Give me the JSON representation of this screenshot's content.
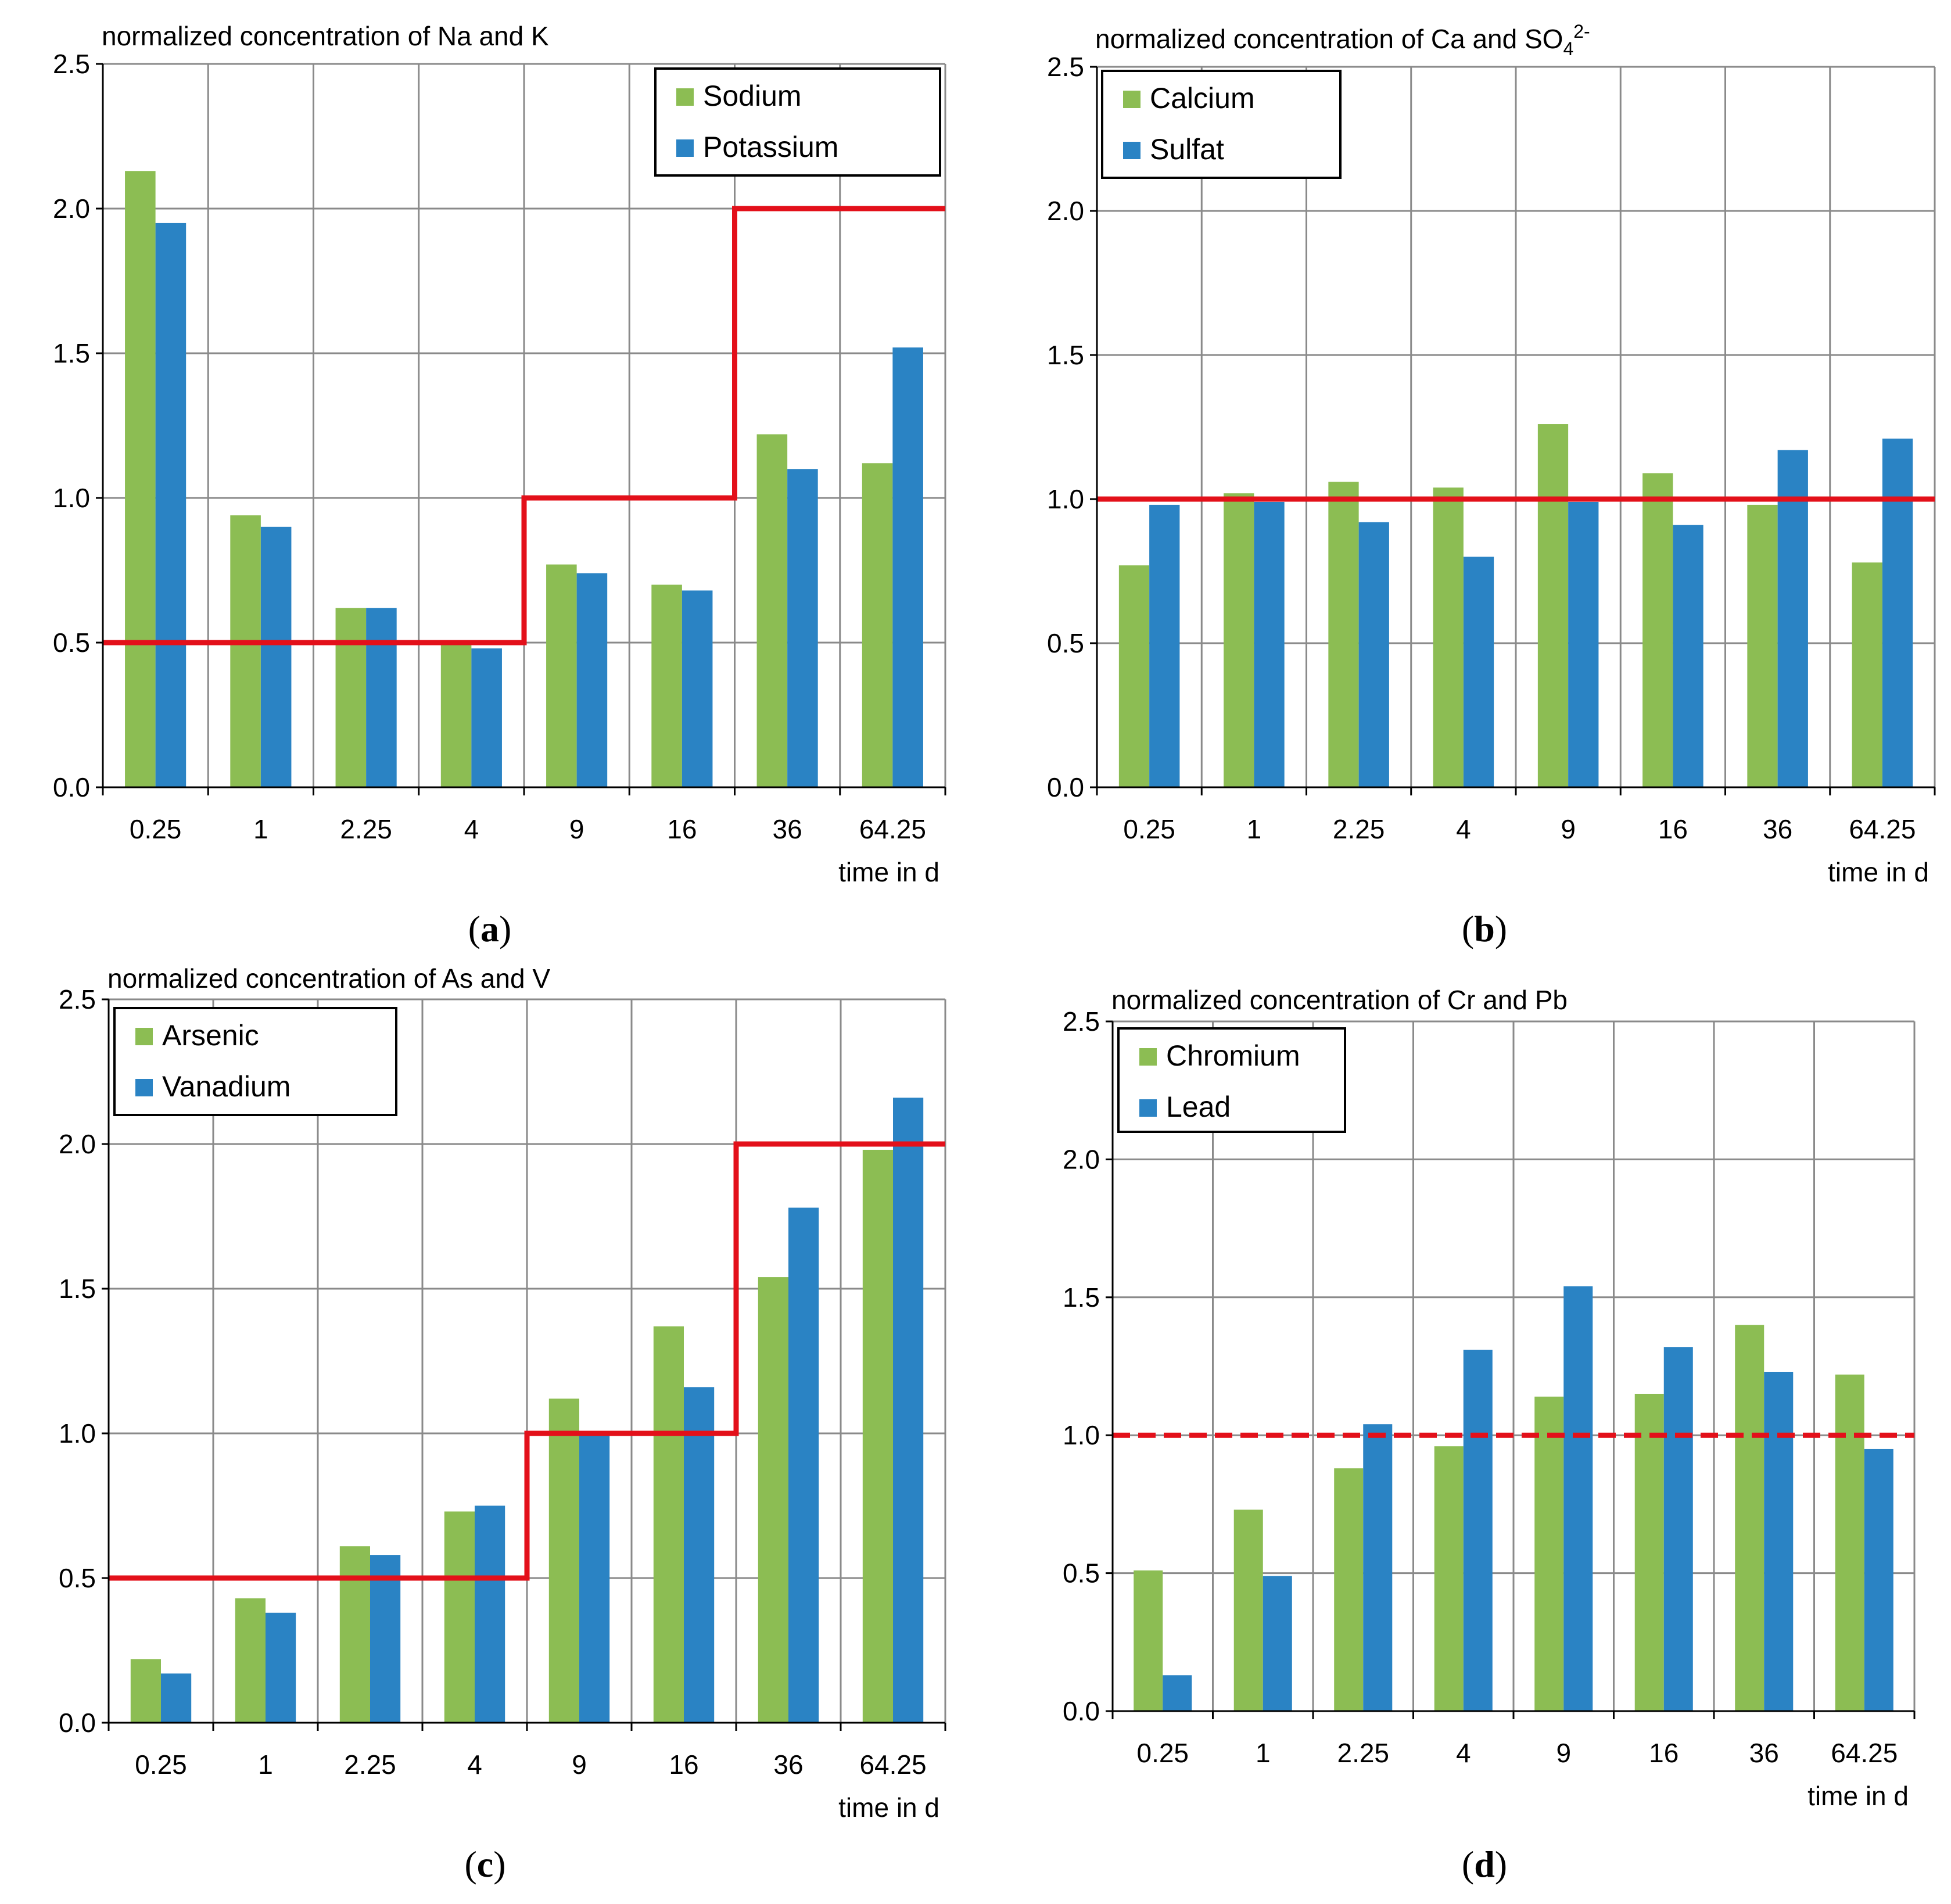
{
  "colors": {
    "series1": "#8cbd53",
    "series2": "#2a83c4",
    "threshold": "#e3101a",
    "grid": "#8a8a8a",
    "axis": "#000000"
  },
  "chart_data": [
    {
      "id": "a",
      "type": "bar",
      "title": "normalized concentration of Na and K",
      "caption_letter": "a",
      "xlabel": "time in d",
      "ylabel": "",
      "ylim": [
        0,
        2.5
      ],
      "yticks": [
        "0.0",
        "0.5",
        "1.0",
        "1.5",
        "2.0",
        "2.5"
      ],
      "categories": [
        "0.25",
        "1",
        "2.25",
        "4",
        "9",
        "16",
        "36",
        "64.25"
      ],
      "series": [
        {
          "name": "Sodium",
          "values": [
            2.13,
            0.94,
            0.62,
            0.5,
            0.77,
            0.7,
            1.22,
            1.12
          ]
        },
        {
          "name": "Potassium",
          "values": [
            1.95,
            0.9,
            0.62,
            0.48,
            0.74,
            0.68,
            1.1,
            1.52
          ]
        }
      ],
      "threshold": {
        "style": "solid",
        "levels": [
          0.5,
          0.5,
          0.5,
          0.5,
          1.0,
          1.0,
          2.0,
          2.0
        ]
      },
      "legend": "top-right",
      "grid": true
    },
    {
      "id": "b",
      "type": "bar",
      "title": "normalized concentration of Ca and SO",
      "title_sub": "4",
      "title_sup": "2-",
      "caption_letter": "b",
      "xlabel": "time in d",
      "ylabel": "",
      "ylim": [
        0,
        2.5
      ],
      "yticks": [
        "0.0",
        "0.5",
        "1.0",
        "1.5",
        "2.0",
        "2.5"
      ],
      "categories": [
        "0.25",
        "1",
        "2.25",
        "4",
        "9",
        "16",
        "36",
        "64.25"
      ],
      "series": [
        {
          "name": "Calcium",
          "values": [
            0.77,
            1.02,
            1.06,
            1.04,
            1.26,
            1.09,
            0.98,
            0.78
          ]
        },
        {
          "name": "Sulfat",
          "values": [
            0.98,
            0.99,
            0.92,
            0.8,
            0.99,
            0.91,
            1.17,
            1.21
          ]
        }
      ],
      "threshold": {
        "style": "solid",
        "levels": [
          1.0,
          1.0,
          1.0,
          1.0,
          1.0,
          1.0,
          1.0,
          1.0
        ]
      },
      "legend": "top-left",
      "grid": true
    },
    {
      "id": "c",
      "type": "bar",
      "title": "normalized concentration of As and V",
      "caption_letter": "c",
      "xlabel": "time in d",
      "ylabel": "",
      "ylim": [
        0,
        2.5
      ],
      "yticks": [
        "0.0",
        "0.5",
        "1.0",
        "1.5",
        "2.0",
        "2.5"
      ],
      "categories": [
        "0.25",
        "1",
        "2.25",
        "4",
        "9",
        "16",
        "36",
        "64.25"
      ],
      "series": [
        {
          "name": "Arsenic",
          "values": [
            0.22,
            0.43,
            0.61,
            0.73,
            1.12,
            1.37,
            1.54,
            1.98
          ]
        },
        {
          "name": "Vanadium",
          "values": [
            0.17,
            0.38,
            0.58,
            0.75,
            1.0,
            1.16,
            1.78,
            2.16
          ]
        }
      ],
      "threshold": {
        "style": "solid",
        "levels": [
          0.5,
          0.5,
          0.5,
          0.5,
          1.0,
          1.0,
          2.0,
          2.0
        ]
      },
      "legend": "top-left",
      "grid": true
    },
    {
      "id": "d",
      "type": "bar",
      "title": "normalized concentration of Cr and Pb",
      "caption_letter": "d",
      "xlabel": "time in d",
      "ylabel": "",
      "ylim": [
        0,
        2.5
      ],
      "yticks": [
        "0.0",
        "0.5",
        "1.0",
        "1.5",
        "2.0",
        "2.5"
      ],
      "categories": [
        "0.25",
        "1",
        "2.25",
        "4",
        "9",
        "16",
        "36",
        "64.25"
      ],
      "series": [
        {
          "name": "Chromium",
          "values": [
            0.51,
            0.73,
            0.88,
            0.96,
            1.14,
            1.15,
            1.4,
            1.22
          ]
        },
        {
          "name": "Lead",
          "values": [
            0.13,
            0.49,
            1.04,
            1.31,
            1.54,
            1.32,
            1.23,
            0.95
          ]
        }
      ],
      "threshold": {
        "style": "dashed",
        "levels": [
          1.0,
          1.0,
          1.0,
          1.0,
          1.0,
          1.0,
          1.0,
          1.0
        ]
      },
      "legend": "top-left",
      "grid": true
    }
  ]
}
